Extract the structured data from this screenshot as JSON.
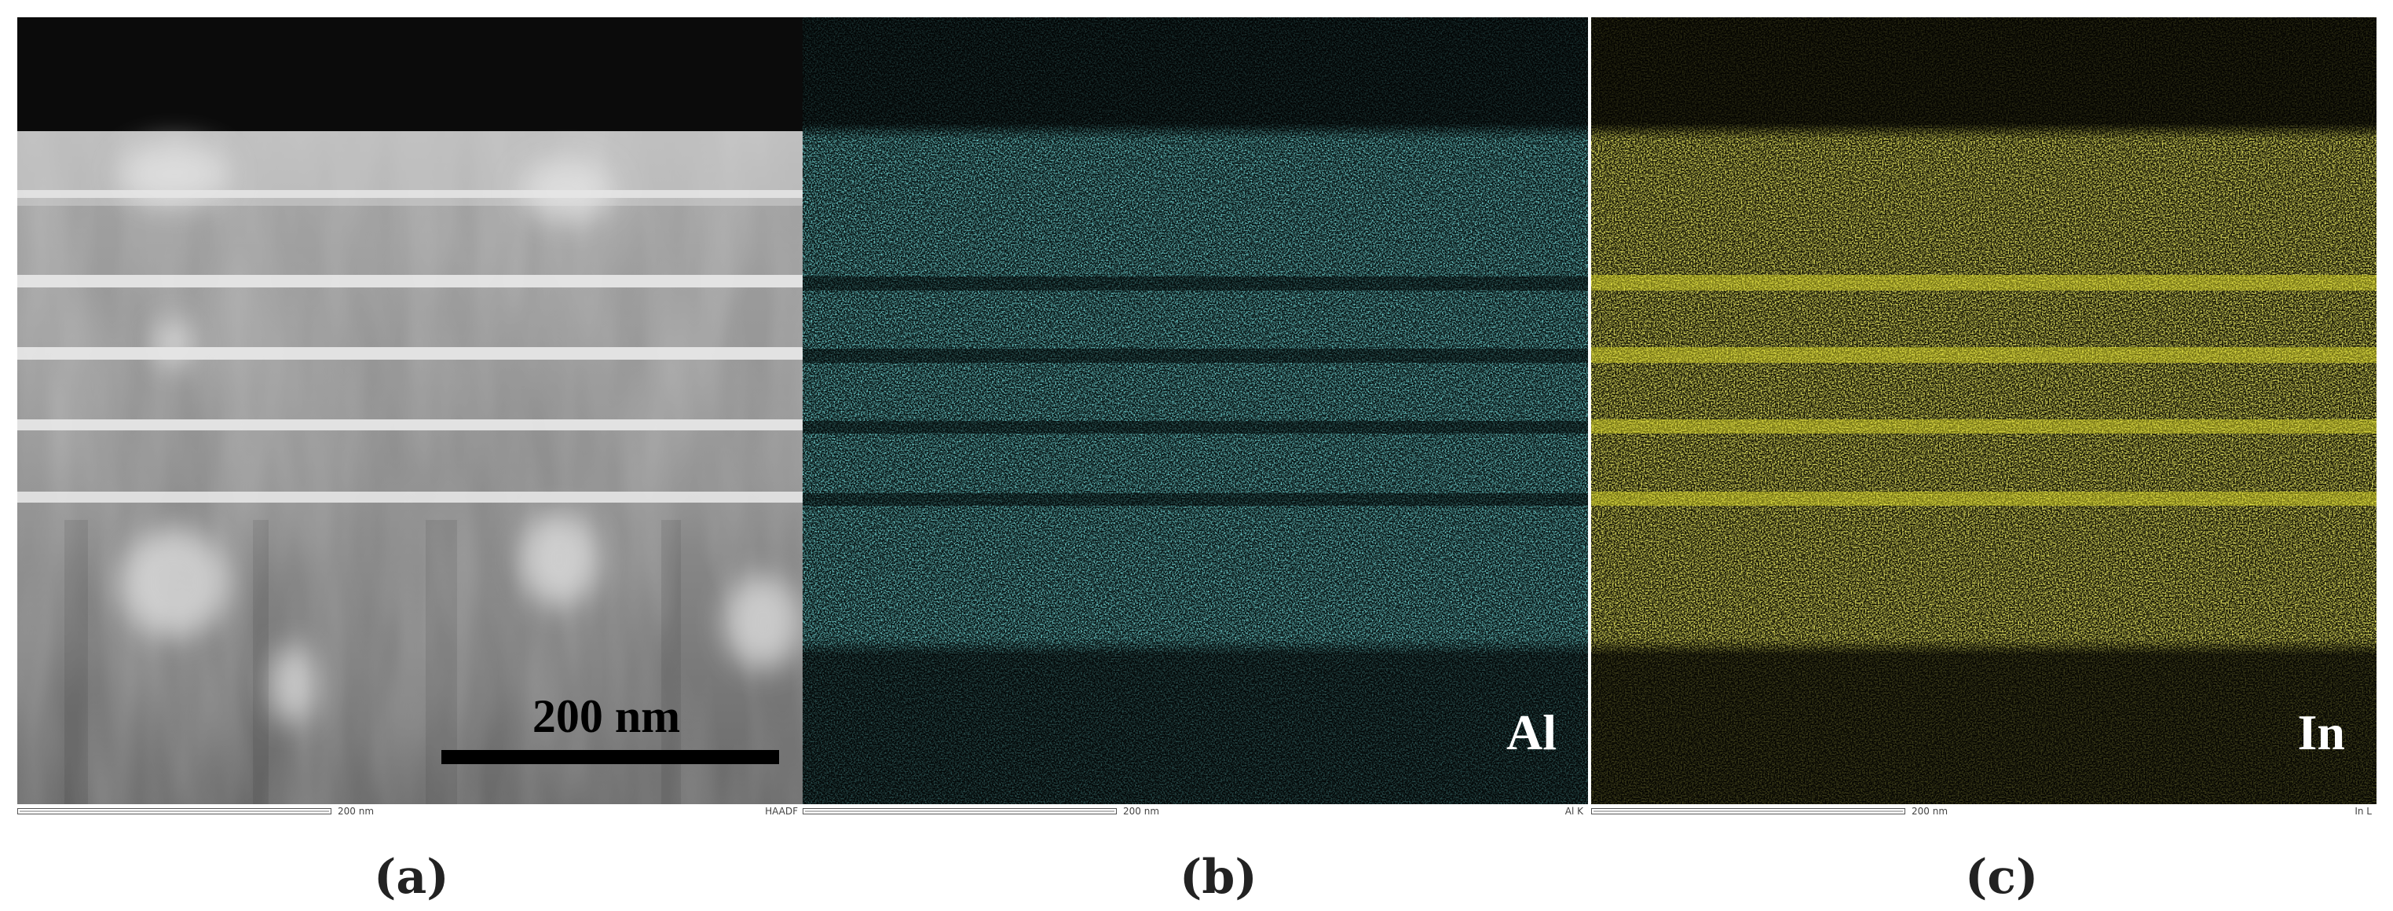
{
  "panels": [
    {
      "id": "a",
      "caption": "(a)",
      "scalebar_label": "200 nm",
      "strip_scale": "200 nm",
      "strip_signal": "HAADF",
      "colors": {
        "background": "#3c3c3c",
        "cap": "#0b0b0b",
        "bright": "#d8d8d8"
      }
    },
    {
      "id": "b",
      "caption": "(b)",
      "element": "Al",
      "strip_scale": "200 nm",
      "strip_signal": "Al K",
      "colors": {
        "signal": "#2fb2b2",
        "dark": "#061212"
      }
    },
    {
      "id": "c",
      "caption": "(c)",
      "element": "In",
      "strip_scale": "200 nm",
      "strip_signal": "In L",
      "colors": {
        "signal": "#c9c81d",
        "dark": "#0e0e02"
      }
    }
  ]
}
